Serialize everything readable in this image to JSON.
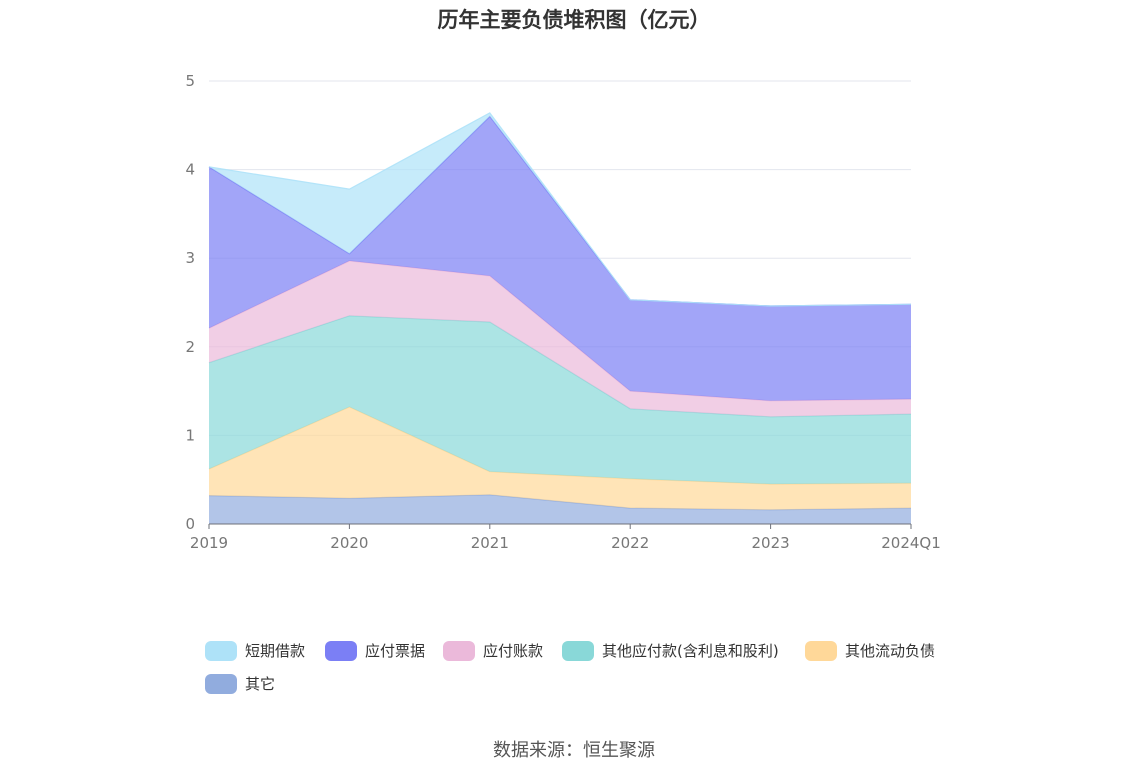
{
  "chart_data": {
    "type": "area",
    "title": "历年主要负债堆积图（亿元）",
    "source": "数据来源：恒生聚源",
    "stacked": true,
    "categories": [
      "2019",
      "2020",
      "2021",
      "2022",
      "2023",
      "2024Q1"
    ],
    "ylim": [
      0,
      5
    ],
    "yticks": [
      "0",
      "1",
      "2",
      "3",
      "4",
      "5"
    ],
    "grid": true,
    "legend_position": "bottom",
    "series": [
      {
        "name": "其它",
        "color": "#91acde",
        "values": [
          0.32,
          0.29,
          0.33,
          0.18,
          0.16,
          0.18
        ]
      },
      {
        "name": "其他流动负债",
        "color": "#ffd899",
        "values": [
          0.3,
          1.03,
          0.26,
          0.33,
          0.29,
          0.28
        ]
      },
      {
        "name": "其他应付款(含利息和股利)",
        "color": "#89d8d8",
        "values": [
          1.2,
          1.03,
          1.69,
          0.79,
          0.76,
          0.78
        ]
      },
      {
        "name": "应付账款",
        "color": "#ebb9da",
        "values": [
          0.39,
          0.62,
          0.52,
          0.2,
          0.18,
          0.17
        ]
      },
      {
        "name": "应付票据",
        "color": "#7b7ff5",
        "values": [
          1.82,
          0.08,
          1.8,
          1.03,
          1.07,
          1.07
        ]
      },
      {
        "name": "短期借款",
        "color": "#aee2f8",
        "values": [
          0.0,
          0.73,
          0.04,
          0.0,
          0.0,
          0.0
        ]
      }
    ],
    "legend_order": [
      "短期借款",
      "应付票据",
      "应付账款",
      "其他应付款(含利息和股利)",
      "其他流动负债",
      "其它"
    ]
  }
}
